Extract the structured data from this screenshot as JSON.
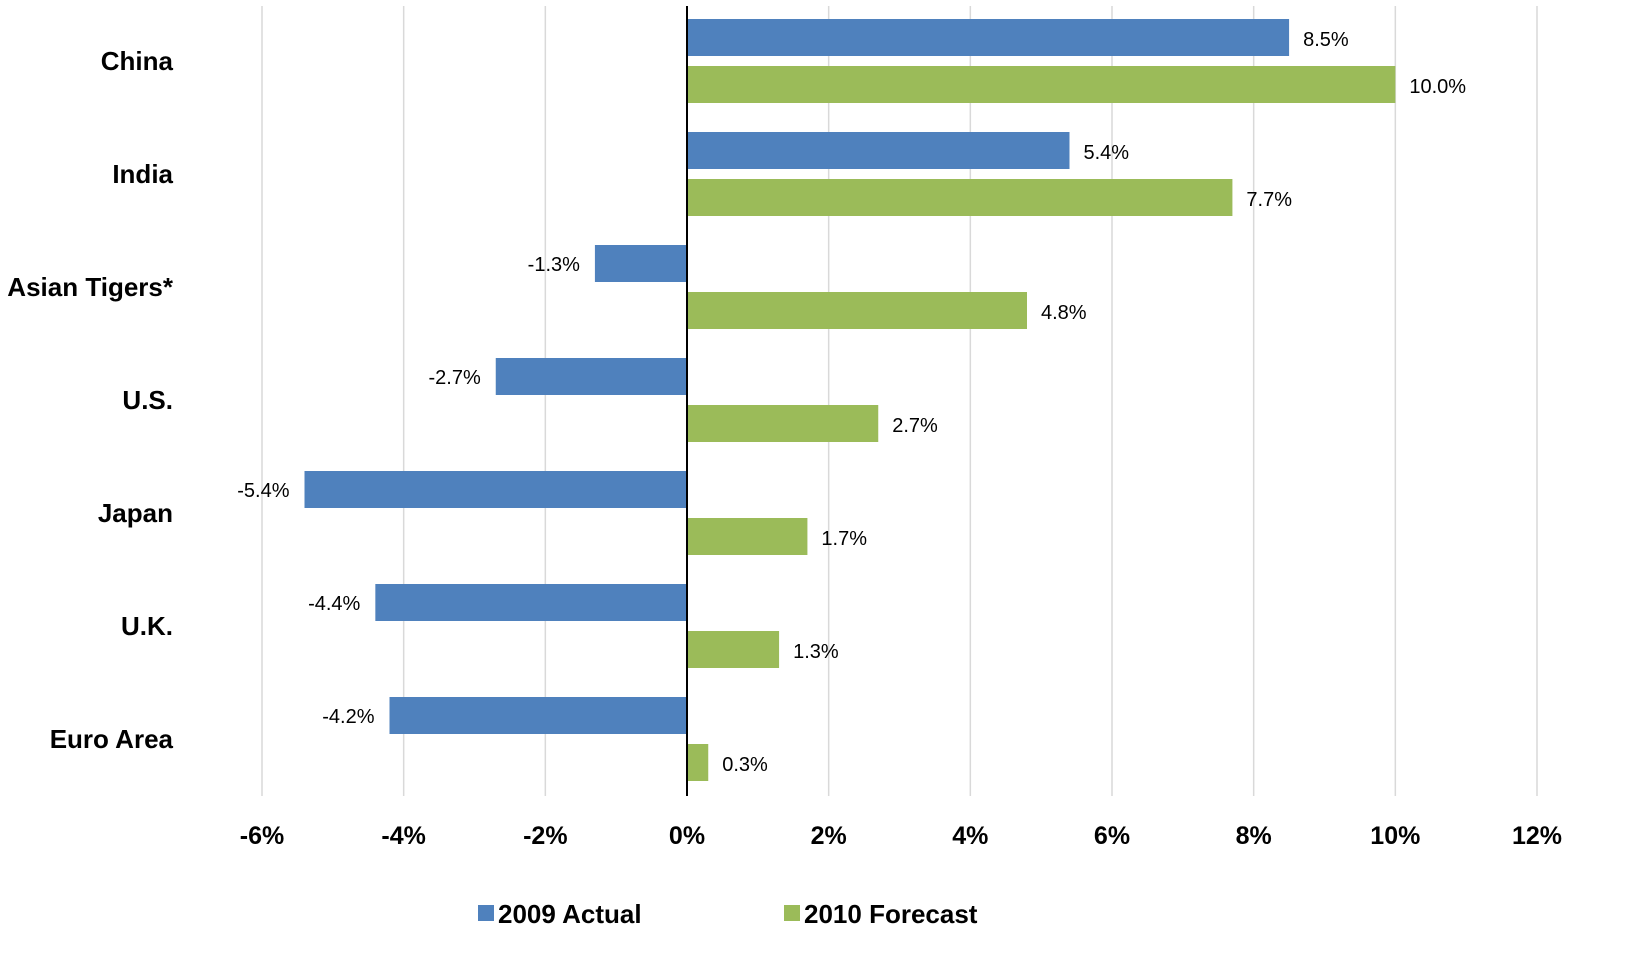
{
  "chart_data": {
    "type": "bar",
    "orientation": "horizontal",
    "categories": [
      "China",
      "India",
      "Asian Tigers*",
      "U.S.",
      "Japan",
      "U.K.",
      "Euro Area"
    ],
    "series": [
      {
        "name": "2009 Actual",
        "color": "#4f81bd",
        "values": [
          8.5,
          5.4,
          -1.3,
          -2.7,
          -5.4,
          -4.4,
          -4.2
        ],
        "labels": [
          "8.5%",
          "5.4%",
          "-1.3%",
          "-2.7%",
          "-5.4%",
          "-4.4%",
          "-4.2%"
        ]
      },
      {
        "name": "2010 Forecast",
        "color": "#9bbb59",
        "values": [
          10.0,
          7.7,
          4.8,
          2.7,
          1.7,
          1.3,
          0.3
        ],
        "labels": [
          "10.0%",
          "7.7%",
          "4.8%",
          "2.7%",
          "1.7%",
          "1.3%",
          "0.3%"
        ]
      }
    ],
    "xlim": [
      -6,
      12
    ],
    "xticks": [
      -6,
      -4,
      -2,
      0,
      2,
      4,
      6,
      8,
      10,
      12
    ],
    "xtick_labels": [
      "-6%",
      "-4%",
      "-2%",
      "0%",
      "2%",
      "4%",
      "6%",
      "8%",
      "10%",
      "12%"
    ],
    "grid": "vertical",
    "gridline_color": "#d9d9d9",
    "axis_line_color": "#000000",
    "legend_position": "bottom",
    "title": "",
    "xlabel": "",
    "ylabel": ""
  }
}
